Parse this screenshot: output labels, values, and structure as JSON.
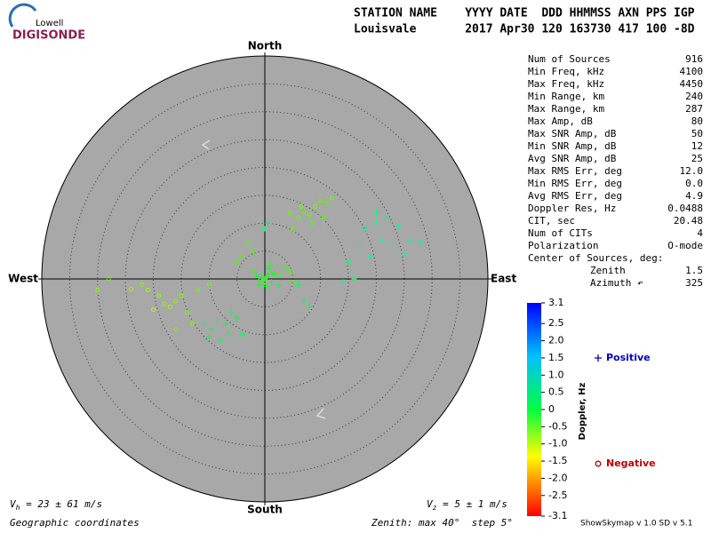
{
  "logo": {
    "top": "Lowell",
    "bottom": "DIGISONDE"
  },
  "header": {
    "line1": "STATION NAME    YYYY DATE  DDD HHMMSS AXN PPS IGP",
    "line2": "Louisvale       2017 Apr30 120 163730 417 100 -8D"
  },
  "stats": {
    "rows": [
      [
        "Num of Sources",
        "916"
      ],
      [
        "Min Freq, kHz",
        "4100"
      ],
      [
        "Max Freq, kHz",
        "4450"
      ],
      [
        "Min Range, km",
        "240"
      ],
      [
        "Max Range, km",
        "287"
      ],
      [
        "Max Amp, dB",
        "80"
      ],
      [
        "Max SNR Amp, dB",
        "50"
      ],
      [
        "Min SNR Amp, dB",
        "12"
      ],
      [
        "Avg SNR Amp, dB",
        "25"
      ],
      [
        "Max RMS Err, deg",
        "12.0"
      ],
      [
        "Min RMS Err, deg",
        "0.0"
      ],
      [
        "Avg RMS Err, deg",
        "4.9"
      ],
      [
        "Doppler Res, Hz",
        "0.0488"
      ],
      [
        "CIT, sec",
        "20.48"
      ],
      [
        "Num of CITs",
        "4"
      ],
      [
        "Polarization",
        "O-mode"
      ]
    ],
    "center_title": "Center of Sources, deg:",
    "center_rows": [
      [
        "Zenith",
        "1.5"
      ],
      [
        "Azimuth ↶",
        "325"
      ]
    ]
  },
  "chart_data": {
    "type": "skymap",
    "directions": {
      "north": "North",
      "south": "South",
      "east": "East",
      "west": "West"
    },
    "zenith_max": 40,
    "zenith_step": 5,
    "colorbar": {
      "label": "Doppler, Hz",
      "lim": [
        -3.1,
        3.1
      ],
      "ticks": [
        3.1,
        2.5,
        {
          "value": 2,
          "label": "2.0"
        },
        1.5,
        {
          "value": 1,
          "label": "1.0"
        },
        0.5,
        0,
        -0.5,
        {
          "value": -1,
          "label": "-1.0"
        },
        -1.5,
        {
          "value": -2,
          "label": "-2.0"
        },
        -2.5,
        -3.1
      ]
    },
    "series": [
      {
        "name": "Positive",
        "color": "#0000c0",
        "marker": "+",
        "x": [
          0,
          0.5,
          -0.6,
          1.2,
          -1,
          0.3,
          1.8,
          -1.5,
          2.5,
          0.8,
          -6,
          -7,
          -8.5,
          -9.5,
          -10,
          -6.5,
          -11,
          -5,
          -8,
          -4,
          18,
          20,
          22,
          24,
          21,
          17,
          19,
          23,
          26,
          15,
          16,
          14,
          25,
          28,
          20,
          7,
          8,
          6,
          0,
          0.5
        ],
        "values": [
          0,
          0.8,
          0.3,
          -0.5,
          -1,
          -1.4,
          0.9,
          0.6,
          -1.2,
          1.9,
          -6,
          -8,
          -7.3,
          -9,
          -10.5,
          -9.8,
          -8,
          -7,
          -11,
          -10,
          9,
          10,
          11,
          9.5,
          7,
          6,
          4,
          6,
          7,
          3,
          0,
          -0.5,
          4.5,
          6.5,
          12,
          -4,
          -5,
          -1,
          9,
          10
        ],
        "doppler": [
          0.2,
          0.3,
          0.2,
          0.4,
          0.3,
          0.2,
          0.5,
          0.3,
          0.4,
          0.3,
          0.5,
          0.4,
          0.6,
          0.5,
          0.4,
          0.5,
          0.6,
          0.4,
          0.5,
          0.6,
          0.8,
          0.9,
          0.7,
          0.8,
          0.9,
          0.7,
          0.8,
          0.9,
          0.8,
          0.7,
          0.6,
          0.7,
          0.9,
          0.8,
          0.7,
          0.5,
          0.4,
          0.5,
          0.6,
          0.5
        ]
      },
      {
        "name": "Negative",
        "color": "#c00000",
        "marker": "o",
        "x": [
          0.4,
          -0.8,
          1.5,
          -0.3,
          2.8,
          3.5,
          4.5,
          -2,
          1,
          5,
          5,
          6,
          7,
          8,
          9,
          10,
          11,
          12,
          6.5,
          8.5,
          4.5,
          10.5,
          -16,
          -17,
          -18,
          -19,
          -20,
          -15,
          -14,
          -21,
          -22,
          -24,
          -30,
          -28,
          -12,
          -10,
          -13,
          -16,
          -2,
          -4,
          -5,
          -3
        ],
        "values": [
          0.4,
          -0.2,
          1,
          -0.9,
          0.6,
          2,
          1.5,
          1.2,
          2.6,
          -0.5,
          9,
          11,
          12,
          11.5,
          13,
          14,
          13.5,
          14.5,
          13,
          10,
          11.8,
          11,
          -4,
          -5,
          -4.5,
          -3,
          -5.5,
          -3,
          -6,
          -2,
          -1,
          -1.8,
          -2,
          0,
          -2,
          -1,
          -8,
          -9,
          5,
          4,
          3,
          6.5
        ],
        "doppler": [
          -0.2,
          -0.3,
          -0.2,
          -0.3,
          -0.4,
          -0.3,
          -0.4,
          -0.3,
          -0.2,
          -0.4,
          -0.5,
          -0.6,
          -0.5,
          -0.6,
          -0.7,
          -0.6,
          -0.5,
          -0.6,
          -0.7,
          -0.5,
          -0.6,
          -0.5,
          -0.8,
          -0.9,
          -0.8,
          -0.9,
          -1.0,
          -0.8,
          -0.7,
          -0.9,
          -0.8,
          -0.9,
          -0.8,
          -0.7,
          -0.6,
          -0.7,
          -0.8,
          -0.7,
          -0.4,
          -0.5,
          -0.4,
          -0.5
        ]
      }
    ]
  },
  "footer": {
    "vh_v": "V",
    "vh_sub": "h",
    "vh_rest": " = 23 ± 61 m/s",
    "vz_v": "V",
    "vz_sub": "z",
    "vz_rest": " = 5 ± 1 m/s",
    "coords": "Geographic coordinates",
    "zenith": "Zenith: max 40°  step 5°",
    "version": "ShowSkymap v 1.0  SD v 5.1"
  }
}
